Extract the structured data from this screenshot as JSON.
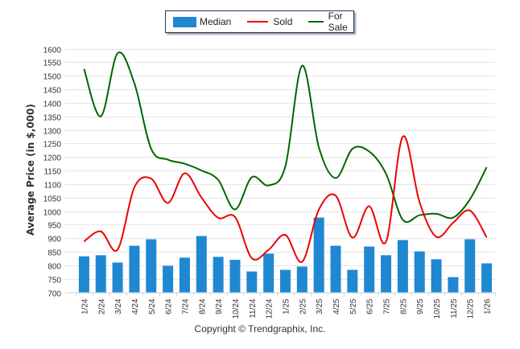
{
  "legend": {
    "median_label": "Median",
    "sold_label": "Sold",
    "forsale_label": "For Sale"
  },
  "footer": {
    "copyright": "Copyright © Trendgraphix, Inc."
  },
  "colors": {
    "median": "#1f88d2",
    "sold": "#ee0000",
    "forsale": "#006600",
    "grid": "#e6e6e6"
  },
  "chart_data": {
    "type": "bar",
    "title": "",
    "xlabel": "",
    "ylabel": "Average Price (in $,000)",
    "ylim": [
      700,
      1600
    ],
    "ytick_step": 50,
    "yticks": [
      "700",
      "750",
      "800",
      "850",
      "900",
      "950",
      "1000",
      "1050",
      "1100",
      "1150",
      "1200",
      "1250",
      "1300",
      "1350",
      "1400",
      "1450",
      "1500",
      "1550",
      "1600"
    ],
    "grid": true,
    "legend_position": "top-center",
    "categories": [
      "1/24",
      "2/24",
      "3/24",
      "4/24",
      "5/24",
      "6/24",
      "7/24",
      "8/24",
      "9/24",
      "10/24",
      "11/24",
      "12/24",
      "1/25",
      "2/25",
      "3/25",
      "4/25",
      "5/25",
      "6/25",
      "7/25",
      "8/25",
      "9/25",
      "10/25",
      "11/25",
      "12/25",
      "1/26"
    ],
    "series": [
      {
        "name": "Median",
        "kind": "bar",
        "values": [
          833,
          837,
          810,
          872,
          896,
          798,
          828,
          908,
          831,
          820,
          777,
          843,
          783,
          795,
          976,
          872,
          783,
          869,
          837,
          893,
          851,
          822,
          756,
          896,
          807
        ]
      },
      {
        "name": "Sold",
        "kind": "line",
        "values": [
          888,
          925,
          858,
          1088,
          1120,
          1030,
          1140,
          1050,
          975,
          978,
          826,
          857,
          912,
          813,
          1006,
          1057,
          902,
          1018,
          887,
          1275,
          1033,
          905,
          957,
          1002,
          903
        ]
      },
      {
        "name": "For Sale",
        "kind": "line",
        "values": [
          1525,
          1350,
          1583,
          1472,
          1230,
          1190,
          1175,
          1150,
          1115,
          1006,
          1125,
          1095,
          1165,
          1537,
          1235,
          1122,
          1230,
          1220,
          1138,
          968,
          985,
          990,
          976,
          1043,
          1162
        ]
      }
    ]
  }
}
